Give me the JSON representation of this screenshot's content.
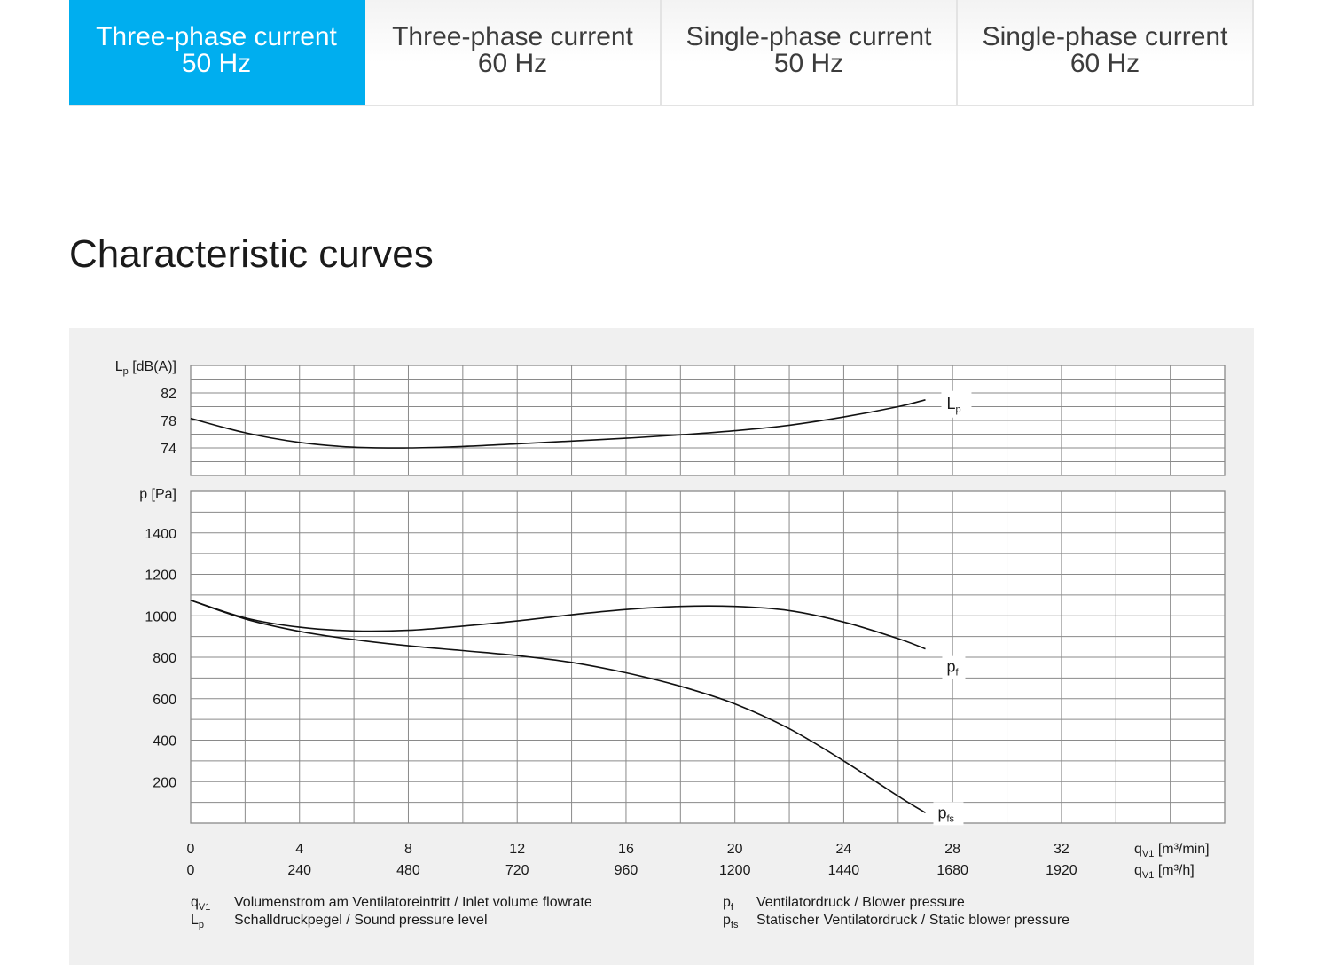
{
  "tabs": [
    {
      "line1": "Three-phase current",
      "line2": "50 Hz",
      "active": true
    },
    {
      "line1": "Three-phase current",
      "line2": "60 Hz",
      "active": false
    },
    {
      "line1": "Single-phase current",
      "line2": "50 Hz",
      "active": false
    },
    {
      "line1": "Single-phase current",
      "line2": "60 Hz",
      "active": false
    }
  ],
  "section_title": "Characteristic curves",
  "chart_data": {
    "type": "line",
    "x": {
      "label_main": "q",
      "label_sub": "V1",
      "unit_min": "[m³/min]",
      "unit_h": "[m³/h]",
      "range": [
        0,
        38
      ],
      "ticks_min": [
        0,
        4,
        8,
        12,
        16,
        20,
        24,
        28,
        32
      ],
      "ticks_h": [
        0,
        240,
        480,
        720,
        960,
        1200,
        1440,
        1680,
        1920
      ]
    },
    "top_panel": {
      "ylabel_main": "L",
      "ylabel_sub": "p",
      "ylabel_unit": "[dB(A)]",
      "ylim": [
        70,
        86
      ],
      "yticks": [
        74,
        78,
        82
      ],
      "series": [
        {
          "name_main": "L",
          "name_sub": "p",
          "x": [
            0,
            2,
            4,
            6,
            8,
            10,
            12,
            14,
            16,
            18,
            20,
            22,
            24,
            26,
            27
          ],
          "y": [
            78.3,
            76.2,
            74.8,
            74.1,
            74.0,
            74.2,
            74.6,
            75.0,
            75.4,
            75.9,
            76.5,
            77.3,
            78.5,
            80.0,
            81.0
          ]
        }
      ]
    },
    "bottom_panel": {
      "ylabel_main": "p",
      "ylabel_unit": "[Pa]",
      "ylim": [
        0,
        1600
      ],
      "yticks": [
        200,
        400,
        600,
        800,
        1000,
        1200,
        1400
      ],
      "series": [
        {
          "name_main": "p",
          "name_sub": "f",
          "x": [
            0,
            2,
            4,
            6,
            8,
            10,
            12,
            14,
            16,
            18,
            20,
            22,
            24,
            26,
            27
          ],
          "y": [
            1075,
            990,
            945,
            927,
            930,
            950,
            975,
            1005,
            1030,
            1045,
            1045,
            1025,
            970,
            890,
            840
          ]
        },
        {
          "name_main": "p",
          "name_sub": "fs",
          "x": [
            0,
            2,
            4,
            6,
            8,
            10,
            12,
            14,
            16,
            18,
            20,
            22,
            24,
            26,
            27
          ],
          "y": [
            1075,
            985,
            925,
            885,
            855,
            832,
            808,
            775,
            725,
            660,
            575,
            455,
            300,
            130,
            50
          ]
        }
      ]
    },
    "legend": [
      {
        "sym_main": "q",
        "sym_sub": "V1",
        "text": "Volumenstrom am Ventilatoreintritt / Inlet volume flowrate"
      },
      {
        "sym_main": "L",
        "sym_sub": "p",
        "text": "Schalldruckpegel / Sound pressure level"
      },
      {
        "sym_main": "p",
        "sym_sub": "f",
        "text": "Ventilatordruck / Blower pressure"
      },
      {
        "sym_main": "p",
        "sym_sub": "fs",
        "text": "Statischer Ventilatordruck / Static blower pressure"
      }
    ]
  }
}
